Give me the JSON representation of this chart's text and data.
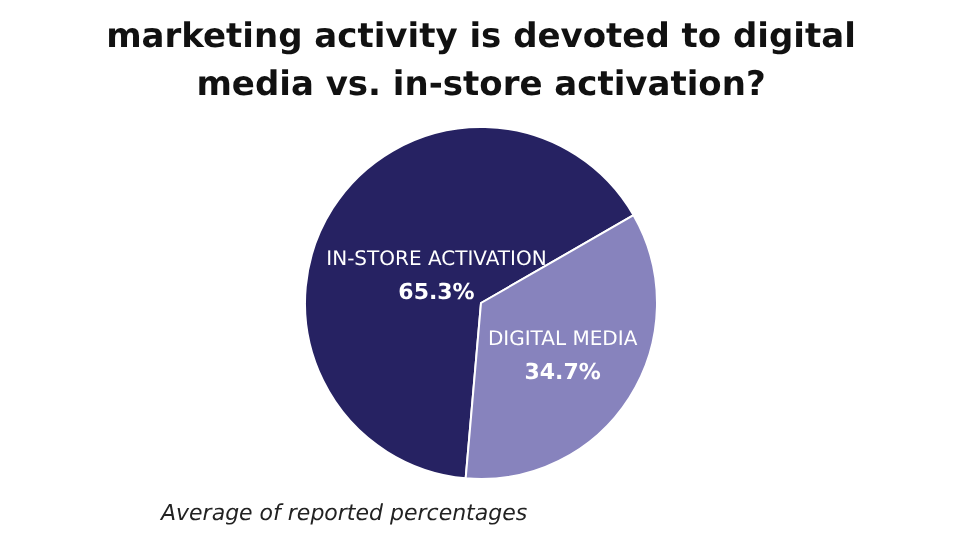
{
  "chart_data": {
    "type": "pie",
    "title": "marketing activity is devoted to digital media vs. in-store activation?",
    "categories": [
      "IN-STORE ACTIVATION",
      "DIGITAL MEDIA"
    ],
    "values": [
      65.3,
      34.7
    ],
    "colors": [
      "#262262",
      "#8783bd"
    ],
    "value_labels": [
      "65.3%",
      "34.7%"
    ],
    "annotations": [
      "Average of reported percentages"
    ]
  }
}
